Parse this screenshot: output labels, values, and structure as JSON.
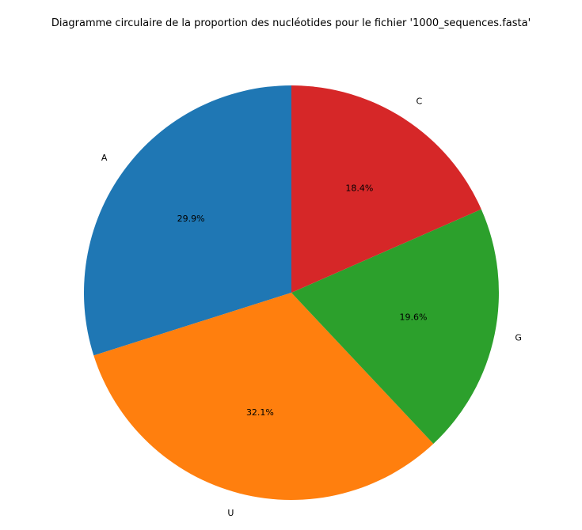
{
  "chart_data": {
    "type": "pie",
    "title": "Diagramme circulaire de la proportion des nucléotides pour le fichier '1000_sequences.fasta'",
    "slices": [
      {
        "label": "A",
        "value": 29.9,
        "pct_text": "29.9%",
        "color": "#1f77b4"
      },
      {
        "label": "U",
        "value": 32.1,
        "pct_text": "32.1%",
        "color": "#ff7f0e"
      },
      {
        "label": "G",
        "value": 19.6,
        "pct_text": "19.6%",
        "color": "#2ca02c"
      },
      {
        "label": "C",
        "value": 18.4,
        "pct_text": "18.4%",
        "color": "#d62728"
      }
    ],
    "start_angle_deg": 90,
    "direction": "counterclockwise"
  }
}
